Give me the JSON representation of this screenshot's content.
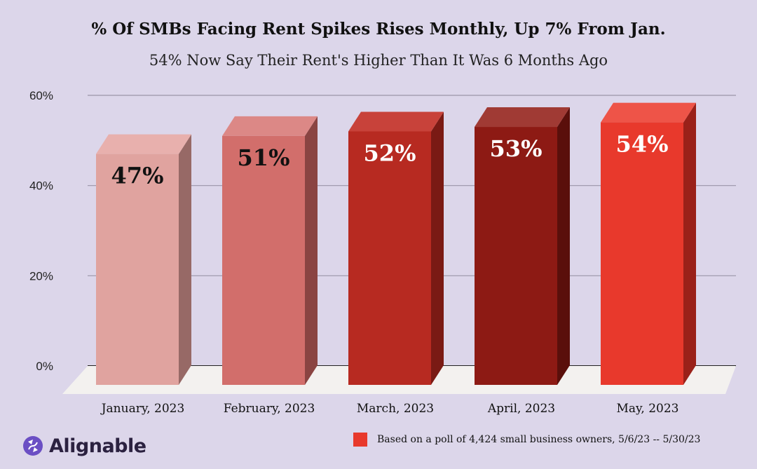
{
  "title": "% Of SMBs Facing Rent Spikes Rises Monthly, Up 7% From Jan.",
  "subtitle": "54% Now Say Their Rent's Higher Than It Was 6 Months Ago",
  "brand": {
    "name": "Alignable",
    "icon": "alignable-logo-icon",
    "color": "#6b4fc4"
  },
  "legend": {
    "label": "Based on a poll of 4,424 small business owners, 5/6/23 -- 5/30/23",
    "color": "#e8392c"
  },
  "chart_data": {
    "type": "bar",
    "categories": [
      "January, 2023",
      "February, 2023",
      "March, 2023",
      "April, 2023",
      "May, 2023"
    ],
    "values": [
      47,
      51,
      52,
      53,
      54
    ],
    "data_labels": [
      "47%",
      "51%",
      "52%",
      "53%",
      "54%"
    ],
    "yticks": [
      "0%",
      "20%",
      "40%",
      "60%"
    ],
    "ytick_values": [
      0,
      20,
      40,
      60
    ],
    "ylim": [
      0,
      60
    ],
    "grid": true,
    "style": "3d",
    "bar_colors": [
      {
        "front": "#e0a39f",
        "side": "#976966",
        "top": "#e8b0ad",
        "label": "#111111"
      },
      {
        "front": "#d26e6b",
        "side": "#8a4442",
        "top": "#dc8886",
        "label": "#111111"
      },
      {
        "front": "#b72a21",
        "side": "#7a1a14",
        "top": "#c8423a",
        "label": "#ffffff"
      },
      {
        "front": "#8d1a14",
        "side": "#5a0f0b",
        "top": "#a03a34",
        "label": "#ffffff"
      },
      {
        "front": "#e8392c",
        "side": "#9a2119",
        "top": "#ee5448",
        "label": "#ffffff"
      }
    ]
  }
}
